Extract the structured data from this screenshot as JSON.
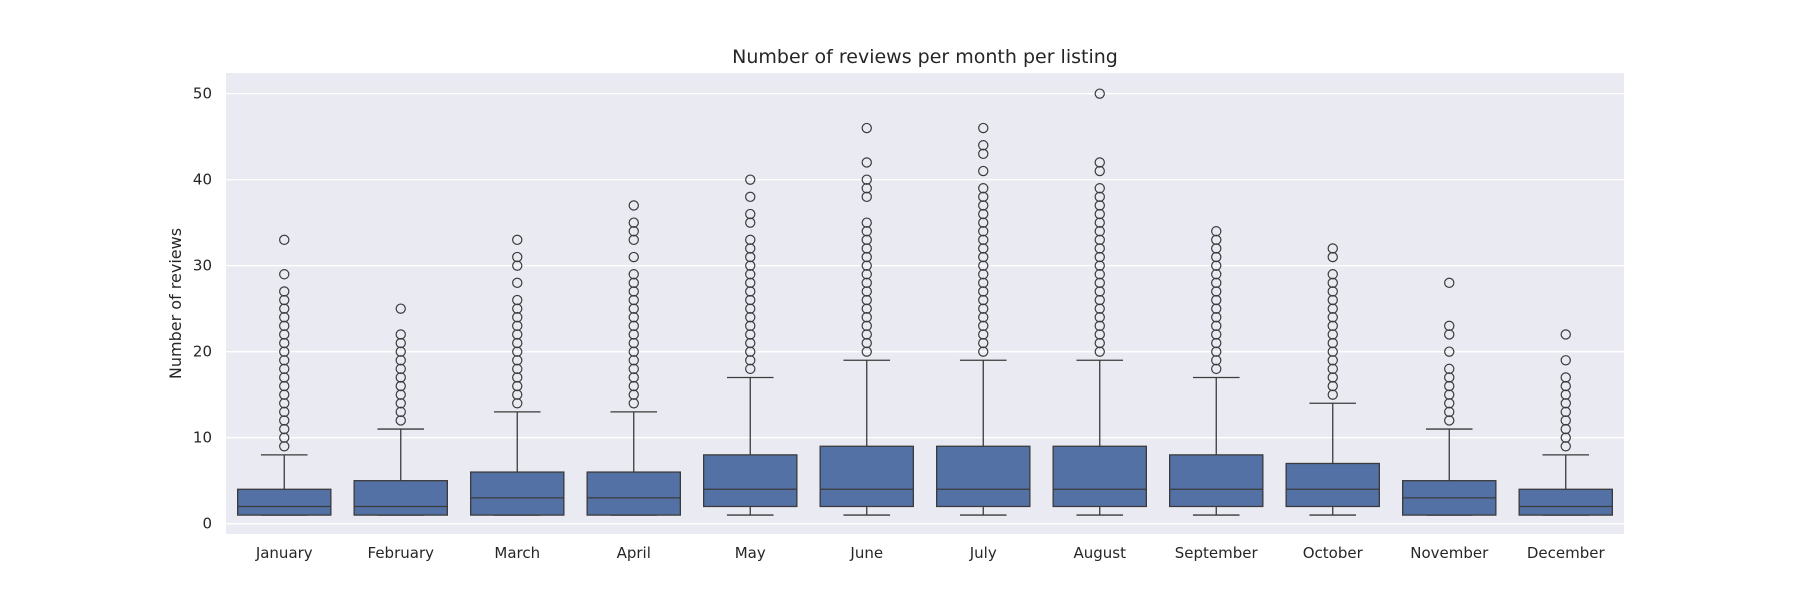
{
  "chart_data": {
    "type": "box",
    "title": "Number of reviews per month per listing",
    "xlabel": "",
    "ylabel": "Number of reviews",
    "ylim": [
      -1.2,
      52.4
    ],
    "yticks": [
      0,
      10,
      20,
      30,
      40,
      50
    ],
    "grid": true,
    "colors": {
      "plot_background": "#eaeaf2",
      "box_fill": "#5471a6",
      "line": "#3b3b3b",
      "grid": "#ffffff"
    },
    "categories": [
      "January",
      "February",
      "March",
      "April",
      "May",
      "June",
      "July",
      "August",
      "September",
      "October",
      "November",
      "December"
    ],
    "boxes": [
      {
        "whislo": 1,
        "q1": 1,
        "med": 2,
        "q3": 4,
        "whishi": 8,
        "outliers": [
          9,
          10,
          11,
          12,
          13,
          14,
          15,
          16,
          17,
          18,
          19,
          20,
          21,
          22,
          23,
          24,
          25,
          26,
          27,
          29,
          33
        ]
      },
      {
        "whislo": 1,
        "q1": 1,
        "med": 2,
        "q3": 5,
        "whishi": 11,
        "outliers": [
          12,
          13,
          14,
          15,
          16,
          17,
          18,
          19,
          20,
          21,
          22,
          25
        ]
      },
      {
        "whislo": 1,
        "q1": 1,
        "med": 3,
        "q3": 6,
        "whishi": 13,
        "outliers": [
          14,
          15,
          16,
          17,
          18,
          19,
          20,
          21,
          22,
          23,
          24,
          25,
          26,
          28,
          30,
          31,
          33
        ]
      },
      {
        "whislo": 1,
        "q1": 1,
        "med": 3,
        "q3": 6,
        "whishi": 13,
        "outliers": [
          14,
          15,
          16,
          17,
          18,
          19,
          20,
          21,
          22,
          23,
          24,
          25,
          26,
          27,
          28,
          29,
          31,
          33,
          34,
          35,
          37
        ]
      },
      {
        "whislo": 1,
        "q1": 2,
        "med": 4,
        "q3": 8,
        "whishi": 17,
        "outliers": [
          18,
          19,
          20,
          21,
          22,
          23,
          24,
          25,
          26,
          27,
          28,
          29,
          30,
          31,
          32,
          33,
          35,
          36,
          38,
          40
        ]
      },
      {
        "whislo": 1,
        "q1": 2,
        "med": 4,
        "q3": 9,
        "whishi": 19,
        "outliers": [
          20,
          21,
          22,
          23,
          24,
          25,
          26,
          27,
          28,
          29,
          30,
          31,
          32,
          33,
          34,
          35,
          38,
          39,
          40,
          42,
          46
        ]
      },
      {
        "whislo": 1,
        "q1": 2,
        "med": 4,
        "q3": 9,
        "whishi": 19,
        "outliers": [
          20,
          21,
          22,
          23,
          24,
          25,
          26,
          27,
          28,
          29,
          30,
          31,
          32,
          33,
          34,
          35,
          36,
          37,
          38,
          39,
          41,
          43,
          44,
          46
        ]
      },
      {
        "whislo": 1,
        "q1": 2,
        "med": 4,
        "q3": 9,
        "whishi": 19,
        "outliers": [
          20,
          21,
          22,
          23,
          24,
          25,
          26,
          27,
          28,
          29,
          30,
          31,
          32,
          33,
          34,
          35,
          36,
          37,
          38,
          39,
          41,
          42,
          50
        ]
      },
      {
        "whislo": 1,
        "q1": 2,
        "med": 4,
        "q3": 8,
        "whishi": 17,
        "outliers": [
          18,
          19,
          20,
          21,
          22,
          23,
          24,
          25,
          26,
          27,
          28,
          29,
          30,
          31,
          32,
          33,
          34
        ]
      },
      {
        "whislo": 1,
        "q1": 2,
        "med": 4,
        "q3": 7,
        "whishi": 14,
        "outliers": [
          15,
          16,
          17,
          18,
          19,
          20,
          21,
          22,
          23,
          24,
          25,
          26,
          27,
          28,
          29,
          31,
          32
        ]
      },
      {
        "whislo": 1,
        "q1": 1,
        "med": 3,
        "q3": 5,
        "whishi": 11,
        "outliers": [
          12,
          13,
          14,
          15,
          16,
          17,
          18,
          20,
          22,
          23,
          28
        ]
      },
      {
        "whislo": 1,
        "q1": 1,
        "med": 2,
        "q3": 4,
        "whishi": 8,
        "outliers": [
          9,
          10,
          11,
          12,
          13,
          14,
          15,
          16,
          17,
          19,
          22
        ]
      }
    ]
  }
}
